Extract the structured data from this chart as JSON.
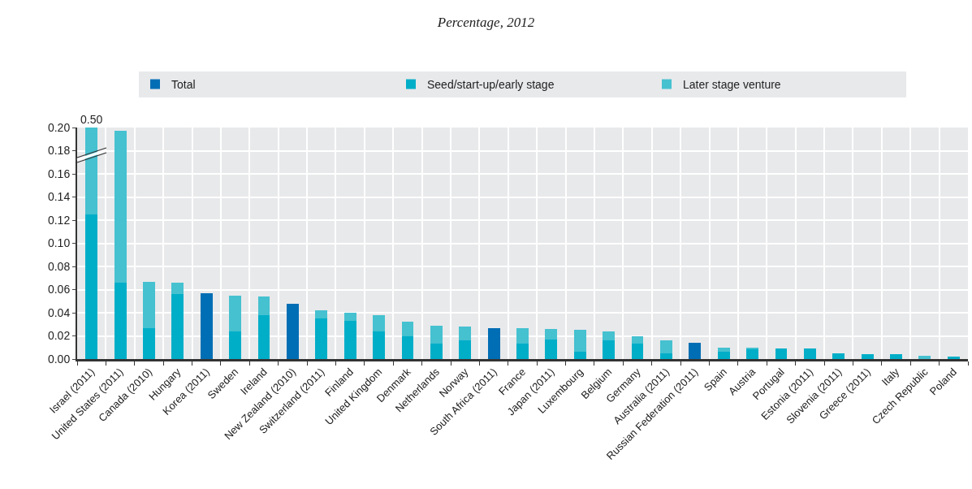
{
  "chart_data": {
    "type": "bar",
    "title": "Percentage, 2012",
    "stacked": true,
    "legend": "top",
    "grid": true,
    "categories": [
      "Israel (2011)",
      "United States (2011)",
      "Canada (2010)",
      "Hungary",
      "Korea (2011)",
      "Sweden",
      "Ireland",
      "New Zealand (2010)",
      "Switzerland (2011)",
      "Finland",
      "United Kingdom",
      "Denmark",
      "Netherlands",
      "Norway",
      "South Africa (2011)",
      "France",
      "Japan (2011)",
      "Luxembourg",
      "Belgium",
      "Germany",
      "Australia (2011)",
      "Russian Federation (2011)",
      "Spain",
      "Austria",
      "Portugal",
      "Estonia (2011)",
      "Slovenia (2011)",
      "Greece (2011)",
      "Italy",
      "Czech Republic",
      "Poland"
    ],
    "series": [
      {
        "name": "Total",
        "color": "#006eb4",
        "values": [
          null,
          null,
          null,
          null,
          0.057,
          null,
          null,
          0.048,
          null,
          null,
          null,
          null,
          null,
          null,
          0.027,
          null,
          null,
          null,
          null,
          null,
          null,
          0.014,
          null,
          null,
          null,
          null,
          null,
          null,
          null,
          null,
          null
        ]
      },
      {
        "name": "Seed/start-up/early stage",
        "color": "#00aec8",
        "values": [
          0.125,
          0.066,
          0.027,
          0.056,
          null,
          0.024,
          0.038,
          null,
          0.035,
          0.033,
          0.024,
          0.02,
          0.013,
          0.016,
          null,
          0.013,
          0.017,
          0.006,
          0.016,
          0.013,
          0.005,
          null,
          0.006,
          0.009,
          0.009,
          0.009,
          0.005,
          0.004,
          0.004,
          null,
          0.002
        ]
      },
      {
        "name": "Later stage venture",
        "color": "#45c1d0",
        "values": [
          0.075,
          0.131,
          0.04,
          0.01,
          null,
          0.031,
          0.016,
          null,
          0.007,
          0.007,
          0.014,
          0.012,
          0.016,
          0.012,
          null,
          0.014,
          0.009,
          0.019,
          0.008,
          0.007,
          0.011,
          null,
          0.004,
          0.001,
          null,
          null,
          null,
          null,
          null,
          0.003,
          null
        ]
      }
    ],
    "ylim": [
      0,
      0.2
    ],
    "yticks": [
      {
        "value": 0,
        "label": "0.00"
      },
      {
        "value": 0.02,
        "label": "0.02"
      },
      {
        "value": 0.04,
        "label": "0.04"
      },
      {
        "value": 0.06,
        "label": "0.06"
      },
      {
        "value": 0.08,
        "label": "0.08"
      },
      {
        "value": 0.1,
        "label": "0.10"
      },
      {
        "value": 0.12,
        "label": "0.12"
      },
      {
        "value": 0.14,
        "label": "0.14"
      },
      {
        "value": 0.16,
        "label": "0.16"
      },
      {
        "value": 0.18,
        "label": "0.18"
      },
      {
        "value": 0.2,
        "label": "0.20"
      }
    ],
    "annotations": [
      {
        "text": "0.50",
        "x": "Israel (2011)",
        "y": 0.2
      }
    ]
  }
}
